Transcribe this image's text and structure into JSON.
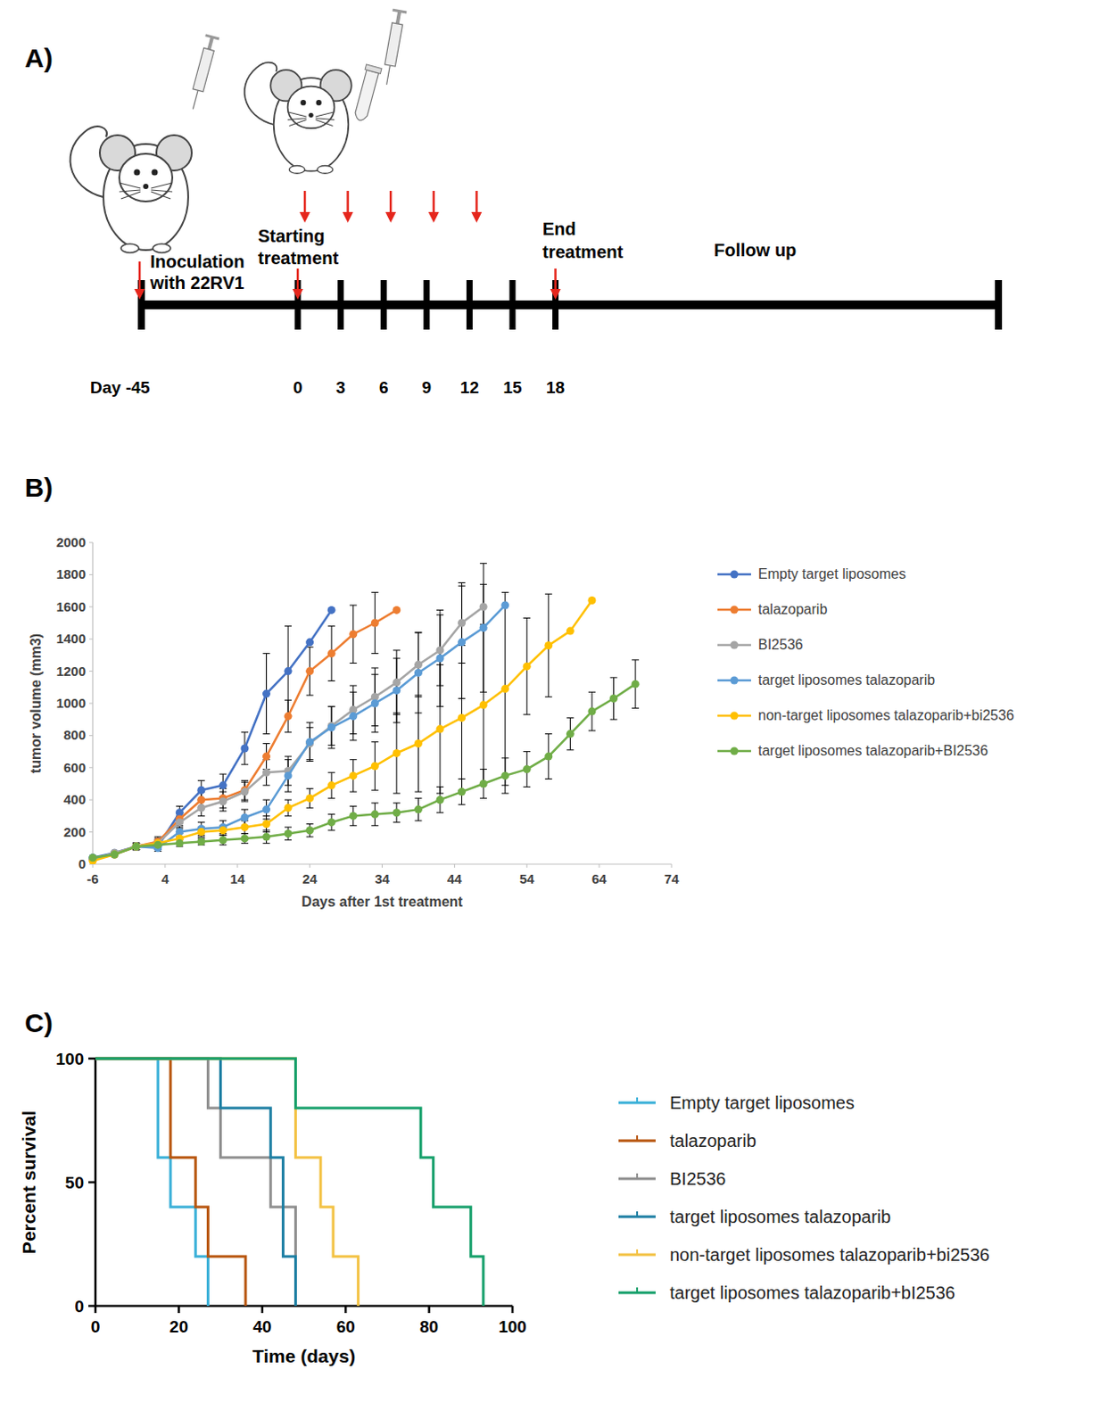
{
  "panel_labels": [
    "A)",
    "B)",
    "C)"
  ],
  "timeline": {
    "start_label": "Day -45",
    "ticks": [
      0,
      3,
      6,
      9,
      12,
      15,
      18
    ],
    "start_day": 0,
    "end_day": 18,
    "treatment_days": [
      0,
      3,
      6,
      9,
      12
    ],
    "inoculation": "Inoculation with 22RV1",
    "start": "Starting treatment",
    "end": "End treatment",
    "follow_up": "Follow up"
  },
  "chart_data": [
    {
      "type": "line",
      "x_label": "Days after 1st treatment",
      "y_label": "tumor volume (mm3)",
      "x": [
        -6,
        -3,
        0,
        3,
        6,
        9,
        12,
        15,
        18,
        21,
        24,
        27,
        30,
        33,
        36,
        39,
        42,
        45,
        48,
        51,
        54,
        57,
        60,
        63,
        66,
        69
      ],
      "xlim": [
        -6,
        74
      ],
      "xticks": [
        -6,
        4,
        14,
        24,
        34,
        44,
        54,
        64,
        74
      ],
      "ylim": [
        0,
        2000
      ],
      "yticks": [
        0,
        200,
        400,
        600,
        800,
        1000,
        1200,
        1400,
        1600,
        1800,
        2000
      ],
      "grid": false,
      "legend": "right",
      "marker": "circle",
      "series": [
        {
          "name": "Empty target liposomes",
          "color": "#4472c4",
          "values": [
            40,
            70,
            110,
            110,
            320,
            460,
            490,
            720,
            1060,
            1200,
            1380,
            1580,
            null,
            null,
            null,
            null,
            null,
            null,
            null,
            null,
            null,
            null,
            null,
            null,
            null,
            null
          ],
          "errors": [
            null,
            null,
            20,
            20,
            40,
            60,
            70,
            100,
            250,
            280,
            null,
            null,
            null,
            null,
            null,
            null,
            null,
            null,
            null,
            null,
            null,
            null,
            null,
            null,
            null,
            null
          ]
        },
        {
          "name": "talazoparib",
          "color": "#ed7d31",
          "values": [
            30,
            60,
            110,
            140,
            280,
            400,
            410,
            460,
            670,
            920,
            1200,
            1310,
            1430,
            1500,
            1580,
            null,
            null,
            null,
            null,
            null,
            null,
            null,
            null,
            null,
            null,
            null
          ],
          "errors": [
            null,
            null,
            20,
            30,
            40,
            50,
            60,
            60,
            80,
            100,
            150,
            170,
            180,
            190,
            null,
            null,
            null,
            null,
            null,
            null,
            null,
            null,
            null,
            null,
            null,
            null
          ]
        },
        {
          "name": "BI2536",
          "color": "#a5a5a5",
          "values": [
            30,
            70,
            110,
            130,
            260,
            350,
            390,
            450,
            570,
            580,
            750,
            860,
            960,
            1040,
            1130,
            1240,
            1330,
            1500,
            1600,
            null,
            null,
            null,
            null,
            null,
            null,
            null
          ],
          "errors": [
            null,
            null,
            20,
            30,
            40,
            50,
            60,
            60,
            80,
            90,
            100,
            120,
            150,
            180,
            200,
            200,
            220,
            250,
            140,
            null,
            null,
            null,
            null,
            null,
            null,
            null
          ]
        },
        {
          "name": "target liposomes talazoparib",
          "color": "#5b9bd5",
          "values": [
            40,
            60,
            110,
            100,
            200,
            220,
            230,
            290,
            340,
            550,
            760,
            850,
            920,
            1000,
            1080,
            1190,
            1280,
            1380,
            1470,
            1610,
            null,
            null,
            null,
            null,
            null,
            null
          ],
          "errors": [
            null,
            null,
            20,
            20,
            30,
            40,
            40,
            50,
            60,
            100,
            120,
            130,
            150,
            180,
            200,
            250,
            300,
            350,
            400,
            null,
            null,
            null,
            null,
            null,
            null,
            null
          ]
        },
        {
          "name": "non-target liposomes talazoparib+bi2536",
          "color": "#ffc000",
          "values": [
            20,
            60,
            110,
            130,
            160,
            200,
            210,
            230,
            250,
            350,
            410,
            490,
            550,
            610,
            690,
            750,
            840,
            910,
            990,
            1090,
            1230,
            1360,
            1450,
            1640,
            null,
            null
          ],
          "errors": [
            null,
            null,
            20,
            20,
            30,
            30,
            30,
            40,
            50,
            50,
            60,
            80,
            100,
            150,
            250,
            300,
            400,
            450,
            500,
            600,
            300,
            320,
            null,
            null,
            null,
            null
          ]
        },
        {
          "name": "target liposomes talazoparib+BI2536",
          "color": "#70ad47",
          "values": [
            40,
            60,
            110,
            120,
            130,
            140,
            150,
            160,
            170,
            190,
            210,
            260,
            300,
            310,
            320,
            340,
            400,
            450,
            500,
            550,
            590,
            670,
            810,
            950,
            1030,
            1120
          ],
          "errors": [
            null,
            null,
            20,
            20,
            20,
            20,
            30,
            30,
            40,
            40,
            40,
            50,
            60,
            70,
            60,
            70,
            80,
            80,
            90,
            110,
            110,
            140,
            100,
            120,
            130,
            150
          ]
        }
      ]
    },
    {
      "type": "step",
      "x_label": "Time (days)",
      "y_label": "Percent survival",
      "xlim": [
        0,
        100
      ],
      "xticks": [
        0,
        20,
        40,
        60,
        80,
        100
      ],
      "ylim": [
        0,
        100
      ],
      "yticks": [
        0,
        50,
        100
      ],
      "grid": false,
      "legend": "right",
      "series": [
        {
          "name": "Empty target liposomes",
          "color": "#3ab0d8",
          "x": [
            0,
            15,
            18,
            24,
            27
          ],
          "values": [
            100,
            60,
            40,
            20,
            0
          ]
        },
        {
          "name": "talazoparib",
          "color": "#b8560f",
          "x": [
            0,
            18,
            24,
            27,
            36
          ],
          "values": [
            100,
            60,
            40,
            20,
            0
          ]
        },
        {
          "name": "BI2536",
          "color": "#8f8f8f",
          "x": [
            0,
            27,
            30,
            42,
            48
          ],
          "values": [
            100,
            80,
            60,
            40,
            0
          ]
        },
        {
          "name": "target liposomes talazoparib",
          "color": "#1d7fa3",
          "x": [
            0,
            30,
            42,
            45,
            48
          ],
          "values": [
            100,
            80,
            60,
            20,
            0
          ]
        },
        {
          "name": "non-target liposomes talazoparib+bi2536",
          "color": "#f3c244",
          "x": [
            0,
            48,
            54,
            57,
            63
          ],
          "values": [
            100,
            60,
            40,
            20,
            0
          ]
        },
        {
          "name": "target liposomes talazoparib+bI2536",
          "color": "#16a06b",
          "x": [
            0,
            48,
            78,
            81,
            90,
            93
          ],
          "values": [
            100,
            80,
            60,
            40,
            20,
            0
          ]
        }
      ]
    }
  ]
}
